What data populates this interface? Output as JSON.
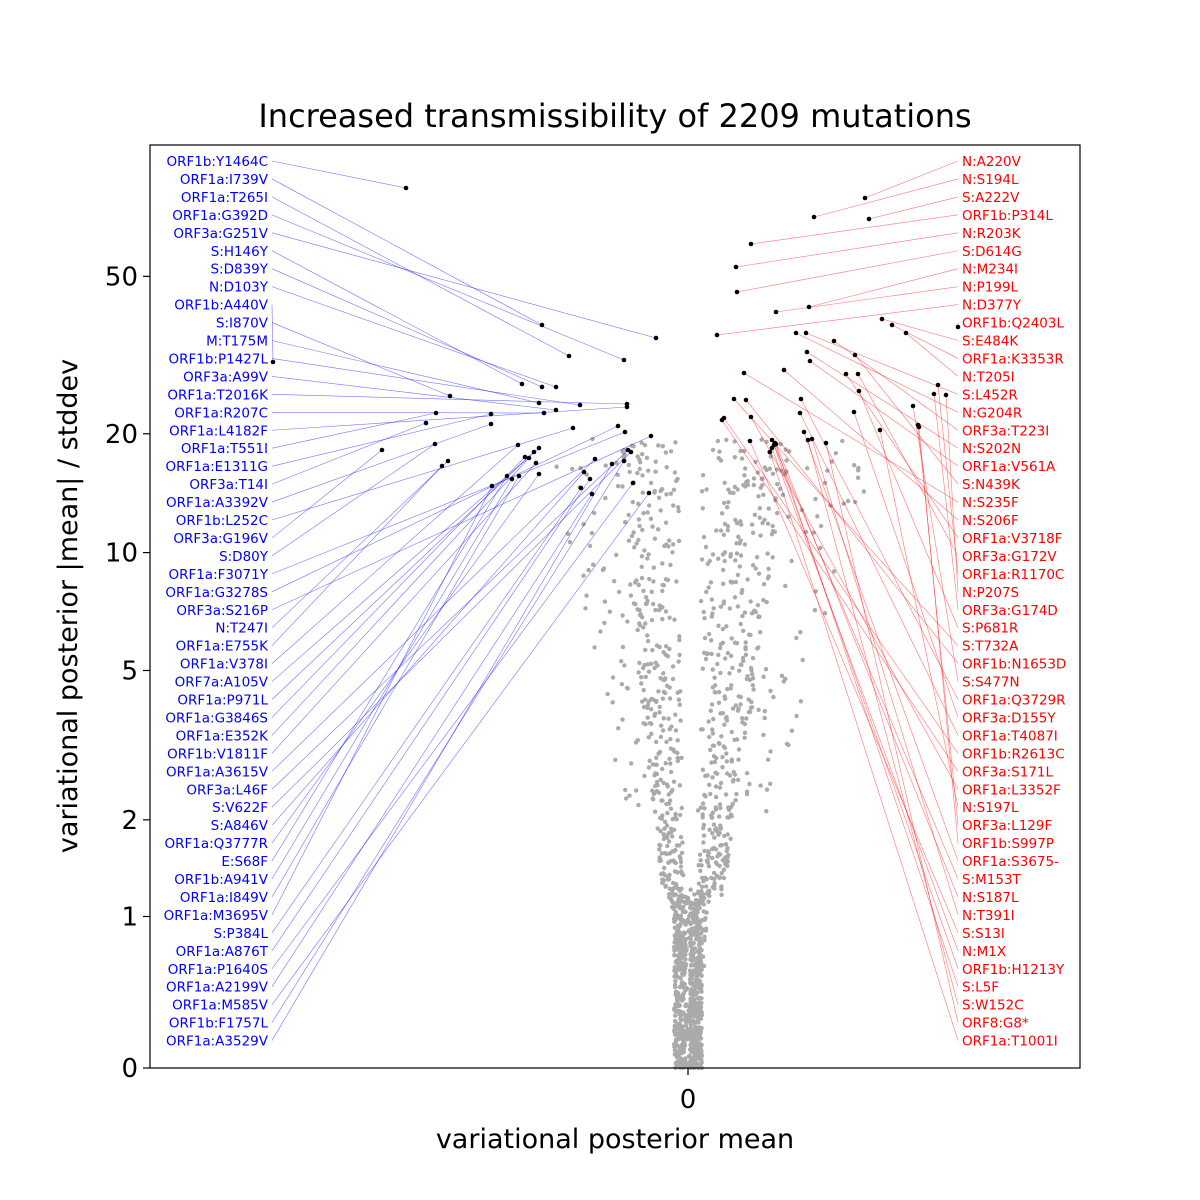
{
  "chart_data": {
    "type": "scatter",
    "title": "Increased transmissibility of 2209 mutations",
    "xlabel": "variational posterior mean",
    "ylabel": "variational posterior |mean| / stddev",
    "x_ticks": [
      0
    ],
    "y_ticks": [
      0,
      1,
      2,
      5,
      10,
      20,
      50
    ],
    "y_scale": "asinh",
    "grid": false,
    "colors": {
      "left_labels": "#0000ff",
      "right_labels": "#ff0000",
      "highlight_points": "#000000",
      "background_points": "#aaaaaa"
    },
    "left_labels": [
      "ORF1b:Y1464C",
      "ORF1a:I739V",
      "ORF1a:T265I",
      "ORF1a:G392D",
      "ORF3a:G251V",
      "S:H146Y",
      "S:D839Y",
      "N:D103Y",
      "ORF1b:A440V",
      "S:I870V",
      "M:T175M",
      "ORF1b:P1427L",
      "ORF3a:A99V",
      "ORF1a:T2016K",
      "ORF1a:R207C",
      "ORF1a:L4182F",
      "ORF1a:T551I",
      "ORF1a:E1311G",
      "ORF3a:T14I",
      "ORF1a:A3392V",
      "ORF1b:L252C",
      "ORF3a:G196V",
      "S:D80Y",
      "ORF1a:F3071Y",
      "ORF1a:G3278S",
      "ORF3a:S216P",
      "N:T247I",
      "ORF1a:E755K",
      "ORF1a:V378I",
      "ORF7a:A105V",
      "ORF1a:P971L",
      "ORF1a:G3846S",
      "ORF1a:E352K",
      "ORF1b:V1811F",
      "ORF1a:A3615V",
      "ORF3a:L46F",
      "S:V622F",
      "S:A846V",
      "ORF1a:Q3777R",
      "E:S68F",
      "ORF1b:A941V",
      "ORF1a:I849V",
      "ORF1a:M3695V",
      "S:P384L",
      "ORF1a:A876T",
      "ORF1a:P1640S",
      "ORF1a:A2199V",
      "ORF1a:M585V",
      "ORF1b:F1757L",
      "ORF1a:A3529V"
    ],
    "right_labels": [
      "N:A220V",
      "N:S194L",
      "S:A222V",
      "ORF1b:P314L",
      "N:R203K",
      "S:D614G",
      "N:M234I",
      "N:P199L",
      "N:D377Y",
      "ORF1b:Q2403L",
      "S:E484K",
      "ORF1a:K3353R",
      "N:T205I",
      "S:L452R",
      "N:G204R",
      "ORF3a:T223I",
      "N:S202N",
      "ORF1a:V561A",
      "S:N439K",
      "N:S235F",
      "N:S206F",
      "ORF1a:V3718F",
      "ORF3a:G172V",
      "ORF1a:R1170C",
      "N:P207S",
      "ORF3a:G174D",
      "S:P681R",
      "S:T732A",
      "ORF1b:N1653D",
      "S:S477N",
      "ORF1a:Q3729R",
      "ORF3a:D155Y",
      "ORF1a:T4087I",
      "ORF1b:R2613C",
      "ORF3a:S171L",
      "ORF1a:L3352F",
      "N:S197L",
      "ORF3a:L129F",
      "ORF1b:S997P",
      "ORF1a:S3675-",
      "S:M153T",
      "N:S187L",
      "N:T391I",
      "S:S13I",
      "N:M1X",
      "ORF1b:H1213Y",
      "S:L5F",
      "S:W152C",
      "ORF8:G8*",
      "ORF1a:T1001I"
    ]
  }
}
